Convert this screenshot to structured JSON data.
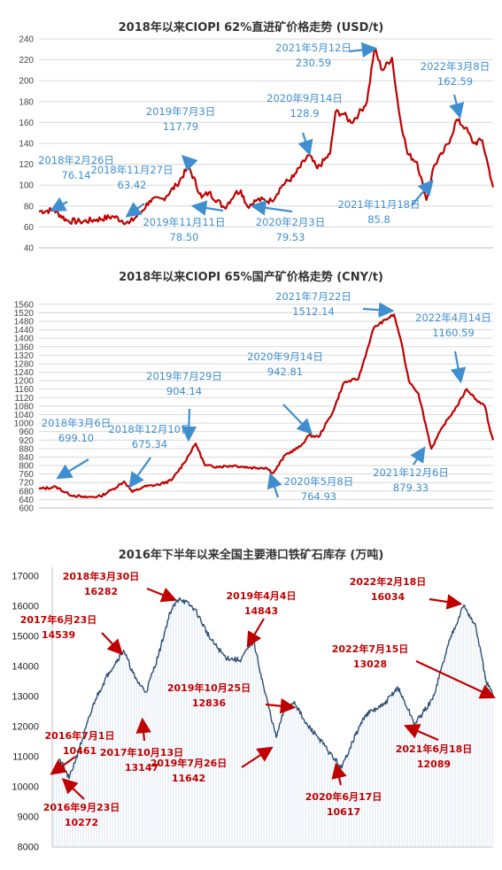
{
  "chart_data": [
    {
      "type": "line",
      "title": "2018年以来CIOPI 62%直进矿价格走势 (USD/t)",
      "ylim": [
        40,
        240
      ],
      "yticks": [
        "240",
        "220",
        "200",
        "180",
        "160",
        "140",
        "120",
        "100",
        "80",
        "60",
        "40"
      ],
      "grid": true,
      "series_color": "#c00000",
      "annotation_color": "#3f8fd0",
      "points": [
        {
          "x": "2018-01-02",
          "y": 75
        },
        {
          "x": "2018-02-26",
          "y": 76.14
        },
        {
          "x": "2018-04-15",
          "y": 66
        },
        {
          "x": "2018-06-01",
          "y": 65
        },
        {
          "x": "2018-08-01",
          "y": 67
        },
        {
          "x": "2018-10-01",
          "y": 70
        },
        {
          "x": "2018-11-27",
          "y": 63.42
        },
        {
          "x": "2019-01-10",
          "y": 74
        },
        {
          "x": "2019-02-10",
          "y": 85
        },
        {
          "x": "2019-04-01",
          "y": 87
        },
        {
          "x": "2019-05-20",
          "y": 100
        },
        {
          "x": "2019-07-03",
          "y": 117.79
        },
        {
          "x": "2019-08-20",
          "y": 88
        },
        {
          "x": "2019-09-15",
          "y": 93
        },
        {
          "x": "2019-11-11",
          "y": 78.5
        },
        {
          "x": "2019-12-20",
          "y": 92
        },
        {
          "x": "2020-01-10",
          "y": 95
        },
        {
          "x": "2020-02-03",
          "y": 79.53
        },
        {
          "x": "2020-03-10",
          "y": 86
        },
        {
          "x": "2020-05-01",
          "y": 85
        },
        {
          "x": "2020-06-10",
          "y": 100
        },
        {
          "x": "2020-07-20",
          "y": 108
        },
        {
          "x": "2020-09-14",
          "y": 128.9
        },
        {
          "x": "2020-10-15",
          "y": 116
        },
        {
          "x": "2020-12-01",
          "y": 130
        },
        {
          "x": "2020-12-21",
          "y": 170
        },
        {
          "x": "2021-01-20",
          "y": 168
        },
        {
          "x": "2021-02-15",
          "y": 160
        },
        {
          "x": "2021-03-15",
          "y": 168
        },
        {
          "x": "2021-04-15",
          "y": 180
        },
        {
          "x": "2021-05-12",
          "y": 230.59
        },
        {
          "x": "2021-06-10",
          "y": 210
        },
        {
          "x": "2021-07-15",
          "y": 222
        },
        {
          "x": "2021-08-10",
          "y": 170
        },
        {
          "x": "2021-09-10",
          "y": 130
        },
        {
          "x": "2021-10-15",
          "y": 122
        },
        {
          "x": "2021-11-18",
          "y": 85.8
        },
        {
          "x": "2021-12-15",
          "y": 118
        },
        {
          "x": "2022-01-15",
          "y": 130
        },
        {
          "x": "2022-02-15",
          "y": 145
        },
        {
          "x": "2022-03-08",
          "y": 162.59
        },
        {
          "x": "2022-04-10",
          "y": 155
        },
        {
          "x": "2022-05-10",
          "y": 140
        },
        {
          "x": "2022-06-10",
          "y": 143
        },
        {
          "x": "2022-07-05",
          "y": 115
        },
        {
          "x": "2022-07-20",
          "y": 98
        }
      ],
      "annotations": [
        {
          "date": "2018年2月26日",
          "value": "76.14"
        },
        {
          "date": "2018年11月27日",
          "value": "63.42"
        },
        {
          "date": "2019年7月3日",
          "value": "117.79"
        },
        {
          "date": "2019年11月11日",
          "value": "78.50"
        },
        {
          "date": "2020年2月3日",
          "value": "79.53"
        },
        {
          "date": "2020年9月14日",
          "value": "128.9"
        },
        {
          "date": "2021年5月12日",
          "value": "230.59"
        },
        {
          "date": "2021年11月18日",
          "value": "85.8"
        },
        {
          "date": "2022年3月8日",
          "value": "162.59"
        }
      ]
    },
    {
      "type": "line",
      "title": "2018年以来CIOPI 65%国产矿价格走势 (CNY/t)",
      "ylim": [
        600,
        1580
      ],
      "yticks": [
        "1560",
        "1520",
        "1480",
        "1440",
        "1400",
        "1360",
        "1320",
        "1280",
        "1240",
        "1200",
        "1160",
        "1120",
        "1080",
        "1040",
        "1000",
        "960",
        "920",
        "880",
        "840",
        "800",
        "760",
        "720",
        "680",
        "640",
        "600"
      ],
      "grid": true,
      "series_color": "#c00000",
      "annotation_color": "#3f8fd0",
      "points": [
        {
          "x": "2018-01-02",
          "y": 690
        },
        {
          "x": "2018-03-06",
          "y": 699.1
        },
        {
          "x": "2018-04-20",
          "y": 665
        },
        {
          "x": "2018-06-15",
          "y": 650
        },
        {
          "x": "2018-08-15",
          "y": 655
        },
        {
          "x": "2018-10-01",
          "y": 690
        },
        {
          "x": "2018-11-10",
          "y": 725
        },
        {
          "x": "2018-12-10",
          "y": 675.34
        },
        {
          "x": "2019-01-20",
          "y": 700
        },
        {
          "x": "2019-03-15",
          "y": 710
        },
        {
          "x": "2019-05-01",
          "y": 730
        },
        {
          "x": "2019-06-15",
          "y": 810
        },
        {
          "x": "2019-07-29",
          "y": 904.14
        },
        {
          "x": "2019-09-01",
          "y": 800
        },
        {
          "x": "2019-10-15",
          "y": 795
        },
        {
          "x": "2019-12-15",
          "y": 800
        },
        {
          "x": "2020-02-15",
          "y": 790
        },
        {
          "x": "2020-04-10",
          "y": 790
        },
        {
          "x": "2020-05-08",
          "y": 764.93
        },
        {
          "x": "2020-06-20",
          "y": 850
        },
        {
          "x": "2020-08-15",
          "y": 890
        },
        {
          "x": "2020-09-14",
          "y": 942.81
        },
        {
          "x": "2020-10-20",
          "y": 935
        },
        {
          "x": "2020-12-10",
          "y": 1050
        },
        {
          "x": "2021-01-20",
          "y": 1190
        },
        {
          "x": "2021-03-15",
          "y": 1210
        },
        {
          "x": "2021-05-10",
          "y": 1450
        },
        {
          "x": "2021-07-22",
          "y": 1512.14
        },
        {
          "x": "2021-08-15",
          "y": 1400
        },
        {
          "x": "2021-09-15",
          "y": 1200
        },
        {
          "x": "2021-10-20",
          "y": 1140
        },
        {
          "x": "2021-12-06",
          "y": 879.33
        },
        {
          "x": "2022-01-20",
          "y": 990
        },
        {
          "x": "2022-03-10",
          "y": 1080
        },
        {
          "x": "2022-04-14",
          "y": 1160.59
        },
        {
          "x": "2022-05-20",
          "y": 1110
        },
        {
          "x": "2022-06-20",
          "y": 1080
        },
        {
          "x": "2022-07-10",
          "y": 960
        },
        {
          "x": "2022-07-20",
          "y": 920
        }
      ],
      "annotations": [
        {
          "date": "2018年3月6日",
          "value": "699.10"
        },
        {
          "date": "2018年12月10日",
          "value": "675.34"
        },
        {
          "date": "2019年7月29日",
          "value": "904.14"
        },
        {
          "date": "2020年5月8日",
          "value": "764.93"
        },
        {
          "date": "2020年9月14日",
          "value": "942.81"
        },
        {
          "date": "2021年7月22日",
          "value": "1512.14"
        },
        {
          "date": "2021年12月6日",
          "value": "879.33"
        },
        {
          "date": "2022年4月14日",
          "value": "1160.59"
        }
      ]
    },
    {
      "type": "area",
      "title": "2016年下半年以来全国主要港口铁矿石库存 (万吨)",
      "ylim": [
        8000,
        17000
      ],
      "yticks": [
        "17000",
        "16000",
        "15000",
        "14000",
        "13000",
        "12000",
        "11000",
        "10000",
        "9000",
        "8000"
      ],
      "grid": false,
      "series_color": "#2f4f74",
      "annotation_color": "#c00000",
      "points": [
        {
          "x": "2016-07-01",
          "y": 10461
        },
        {
          "x": "2016-08-10",
          "y": 10900
        },
        {
          "x": "2016-09-23",
          "y": 10272
        },
        {
          "x": "2016-11-15",
          "y": 11300
        },
        {
          "x": "2017-02-01",
          "y": 12900
        },
        {
          "x": "2017-04-10",
          "y": 13800
        },
        {
          "x": "2017-06-23",
          "y": 14539
        },
        {
          "x": "2017-08-20",
          "y": 13600
        },
        {
          "x": "2017-10-13",
          "y": 13147
        },
        {
          "x": "2017-12-15",
          "y": 14400
        },
        {
          "x": "2018-02-10",
          "y": 15800
        },
        {
          "x": "2018-03-30",
          "y": 16282
        },
        {
          "x": "2018-06-15",
          "y": 15900
        },
        {
          "x": "2018-09-01",
          "y": 14900
        },
        {
          "x": "2018-11-15",
          "y": 14300
        },
        {
          "x": "2019-01-25",
          "y": 14200
        },
        {
          "x": "2019-04-04",
          "y": 14843
        },
        {
          "x": "2019-05-25",
          "y": 13300
        },
        {
          "x": "2019-07-26",
          "y": 11642
        },
        {
          "x": "2019-09-01",
          "y": 12500
        },
        {
          "x": "2019-10-25",
          "y": 12836
        },
        {
          "x": "2019-12-20",
          "y": 12100
        },
        {
          "x": "2020-02-15",
          "y": 11700
        },
        {
          "x": "2020-04-10",
          "y": 11200
        },
        {
          "x": "2020-06-17",
          "y": 10617
        },
        {
          "x": "2020-08-10",
          "y": 11500
        },
        {
          "x": "2020-10-15",
          "y": 12400
        },
        {
          "x": "2021-01-10",
          "y": 12700
        },
        {
          "x": "2021-03-25",
          "y": 13300
        },
        {
          "x": "2021-06-18",
          "y": 12089
        },
        {
          "x": "2021-09-15",
          "y": 12900
        },
        {
          "x": "2021-12-15",
          "y": 15000
        },
        {
          "x": "2022-02-18",
          "y": 16034
        },
        {
          "x": "2022-04-20",
          "y": 15300
        },
        {
          "x": "2022-06-10",
          "y": 13500
        },
        {
          "x": "2022-07-15",
          "y": 13028
        }
      ],
      "annotations": [
        {
          "date": "2016年7月1日",
          "value": "10461"
        },
        {
          "date": "2016年9月23日",
          "value": "10272"
        },
        {
          "date": "2017年6月23日",
          "value": "14539"
        },
        {
          "date": "2017年10月13日",
          "value": "13147"
        },
        {
          "date": "2018年3月30日",
          "value": "16282"
        },
        {
          "date": "2019年4月4日",
          "value": "14843"
        },
        {
          "date": "2019年7月26日",
          "value": "11642"
        },
        {
          "date": "2019年10月25日",
          "value": "12836"
        },
        {
          "date": "2020年6月17日",
          "value": "10617"
        },
        {
          "date": "2021年6月18日",
          "value": "12089"
        },
        {
          "date": "2022年2月18日",
          "value": "16034"
        },
        {
          "date": "2022年7月15日",
          "value": "13028"
        }
      ]
    }
  ]
}
